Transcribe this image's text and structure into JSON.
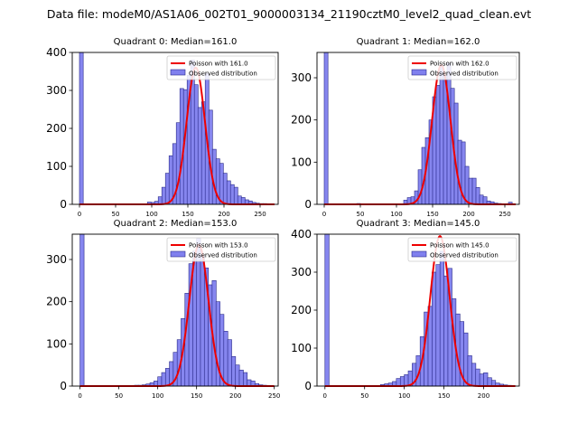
{
  "figure_title": "Data file: modeM0/AS1A06_002T01_9000003134_21190cztM0_level2_quad_clean.evt",
  "colors": {
    "bar_fill": "#8080ee",
    "bar_edge": "#2a2a8a",
    "poisson_line": "#ee0000",
    "axis": "#000000"
  },
  "chart_data": [
    {
      "type": "bar",
      "title": "Quadrant 0: Median=161.0",
      "legend": [
        "Poisson with 161.0",
        "Observed distribution"
      ],
      "legend_position": "top-right",
      "xlim": [
        -10,
        275
      ],
      "ylim": [
        0,
        400
      ],
      "xticks": [
        0,
        50,
        100,
        150,
        200,
        250
      ],
      "yticks": [
        0,
        100,
        200,
        300,
        400
      ],
      "bin_width": 5.2,
      "bin_starts": [
        0,
        94,
        99,
        104,
        109,
        114,
        119,
        124,
        129,
        134,
        139,
        144,
        149,
        154,
        159,
        164,
        169,
        174,
        179,
        184,
        189,
        194,
        199,
        204,
        209,
        214,
        219,
        224,
        229,
        234,
        239,
        244,
        249,
        254,
        259
      ],
      "values": [
        400,
        6,
        5,
        8,
        20,
        45,
        82,
        128,
        160,
        215,
        305,
        302,
        340,
        380,
        315,
        255,
        270,
        345,
        248,
        145,
        120,
        108,
        82,
        62,
        52,
        45,
        22,
        18,
        12,
        9,
        5,
        3,
        2,
        2,
        1
      ],
      "poisson_mean": 161.0,
      "poisson_peak": 360
    },
    {
      "type": "bar",
      "title": "Quadrant 1: Median=162.0",
      "legend": [
        "Poisson with 162.0",
        "Observed distribution"
      ],
      "legend_position": "top-right",
      "xlim": [
        -10,
        270
      ],
      "ylim": [
        0,
        360
      ],
      "xticks": [
        0,
        50,
        100,
        150,
        200,
        250
      ],
      "yticks": [
        0,
        100,
        200,
        300
      ],
      "bin_width": 5.2,
      "bin_starts": [
        0,
        45,
        110,
        115,
        120,
        125,
        130,
        135,
        140,
        145,
        150,
        155,
        160,
        165,
        170,
        175,
        180,
        185,
        190,
        195,
        200,
        205,
        210,
        215,
        220,
        225,
        230,
        235,
        240,
        255
      ],
      "values": [
        360,
        2,
        10,
        16,
        18,
        32,
        82,
        135,
        158,
        200,
        255,
        282,
        330,
        305,
        335,
        275,
        240,
        152,
        148,
        90,
        62,
        62,
        40,
        22,
        18,
        8,
        6,
        3,
        2,
        5
      ],
      "poisson_mean": 162.0,
      "poisson_peak": 330
    },
    {
      "type": "bar",
      "title": "Quadrant 2: Median=153.0",
      "legend": [
        "Poisson with 153.0",
        "Observed distribution"
      ],
      "legend_position": "top-right",
      "xlim": [
        -10,
        255
      ],
      "ylim": [
        0,
        360
      ],
      "xticks": [
        0,
        50,
        100,
        150,
        200,
        250
      ],
      "yticks": [
        0,
        100,
        200,
        300
      ],
      "bin_width": 5.2,
      "bin_starts": [
        0,
        70,
        75,
        80,
        85,
        90,
        95,
        100,
        105,
        110,
        115,
        120,
        125,
        130,
        135,
        140,
        145,
        150,
        155,
        160,
        165,
        170,
        175,
        180,
        185,
        190,
        195,
        200,
        205,
        210,
        215,
        220,
        225,
        230,
        235,
        240
      ],
      "values": [
        360,
        2,
        2,
        3,
        5,
        8,
        12,
        22,
        32,
        42,
        58,
        80,
        110,
        160,
        220,
        290,
        320,
        350,
        310,
        280,
        240,
        250,
        200,
        170,
        130,
        110,
        70,
        50,
        38,
        32,
        15,
        12,
        6,
        3,
        2,
        1
      ],
      "poisson_mean": 153.0,
      "poisson_peak": 335
    },
    {
      "type": "bar",
      "title": "Quadrant 3: Median=145.0",
      "legend": [
        "Poisson with 145.0",
        "Observed distribution"
      ],
      "legend_position": "top-right",
      "xlim": [
        -10,
        245
      ],
      "ylim": [
        0,
        400
      ],
      "xticks": [
        0,
        50,
        100,
        150,
        200
      ],
      "yticks": [
        0,
        100,
        200,
        300,
        400
      ],
      "bin_width": 5.2,
      "bin_starts": [
        0,
        70,
        75,
        80,
        85,
        90,
        95,
        100,
        105,
        110,
        115,
        120,
        125,
        130,
        135,
        140,
        145,
        150,
        155,
        160,
        165,
        170,
        175,
        180,
        185,
        190,
        195,
        200,
        205,
        210,
        215,
        220,
        225,
        230
      ],
      "values": [
        400,
        4,
        6,
        8,
        12,
        20,
        25,
        30,
        40,
        60,
        80,
        130,
        195,
        210,
        300,
        320,
        355,
        290,
        310,
        230,
        190,
        170,
        140,
        80,
        60,
        45,
        32,
        35,
        22,
        15,
        8,
        5,
        3,
        2
      ],
      "poisson_mean": 145.0,
      "poisson_peak": 395
    }
  ]
}
